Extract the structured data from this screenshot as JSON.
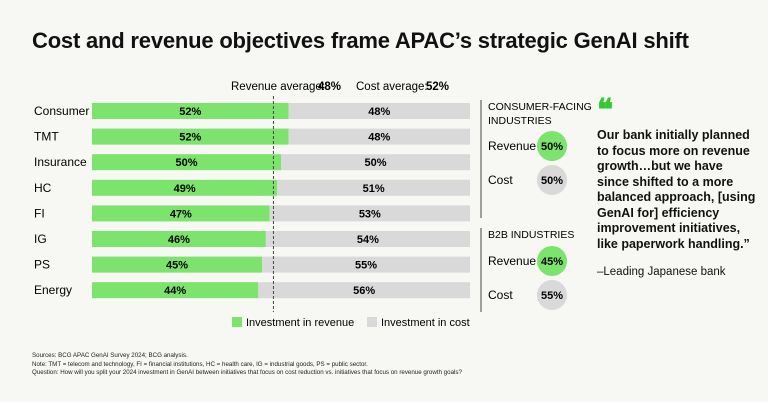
{
  "title": "Cost and revenue objectives frame APAC’s strategic GenAI shift",
  "colors": {
    "revenue": "#7ce36c",
    "cost": "#d9d9d9",
    "accent": "#32c832",
    "text": "#111111"
  },
  "chart_data": {
    "type": "bar",
    "orientation": "horizontal-stacked",
    "categories": [
      "Consumer",
      "TMT",
      "Insurance",
      "HC",
      "FI",
      "IG",
      "PS",
      "Energy"
    ],
    "series": [
      {
        "name": "Investment in revenue",
        "values": [
          52,
          52,
          50,
          49,
          47,
          46,
          45,
          44
        ],
        "labels": [
          "52%",
          "52%",
          "50%",
          "49%",
          "47%",
          "46%",
          "45%",
          "44%"
        ]
      },
      {
        "name": "Investment in cost",
        "values": [
          48,
          48,
          50,
          51,
          53,
          54,
          55,
          56
        ],
        "labels": [
          "48%",
          "48%",
          "50%",
          "51%",
          "53%",
          "54%",
          "55%",
          "56%"
        ]
      }
    ],
    "xlim": [
      0,
      100
    ],
    "reference_line": {
      "value": 48
    },
    "averages": {
      "revenue_label": "Revenue average:",
      "revenue_value": "48%",
      "cost_label": "Cost average:",
      "cost_value": "52%"
    },
    "legend": {
      "position": "bottom",
      "items": [
        "Investment in revenue",
        "Investment in cost"
      ]
    }
  },
  "side_panels": [
    {
      "heading": [
        "CONSUMER-FACING",
        "INDUSTRIES"
      ],
      "rows": [
        {
          "label": "Revenue",
          "value": "50%",
          "kind": "revenue"
        },
        {
          "label": "Cost",
          "value": "50%",
          "kind": "cost"
        }
      ]
    },
    {
      "heading": [
        "B2B INDUSTRIES"
      ],
      "rows": [
        {
          "label": "Revenue",
          "value": "45%",
          "kind": "revenue"
        },
        {
          "label": "Cost",
          "value": "55%",
          "kind": "cost"
        }
      ]
    }
  ],
  "quote": {
    "mark": "❝",
    "text": "Our bank initially planned to focus more on revenue growth…but we have since shifted to a more balanced approach, [using GenAI for] efficiency improvement initiatives, like paperwork handling.”",
    "attribution": "–Leading Japanese bank"
  },
  "footnotes": {
    "sources": "Sources: BCG APAC GenAI Survey 2024; BCG analysis.",
    "note": "Note: TMT = telecom and technology, FI = financial institutions, HC = health care, IG = industrial goods, PS = public sector.",
    "question": "Question: How will you split your 2024 investment in GenAI between initiatives that focus on cost reduction vs. initiatives that focus on revenue growth goals?"
  }
}
